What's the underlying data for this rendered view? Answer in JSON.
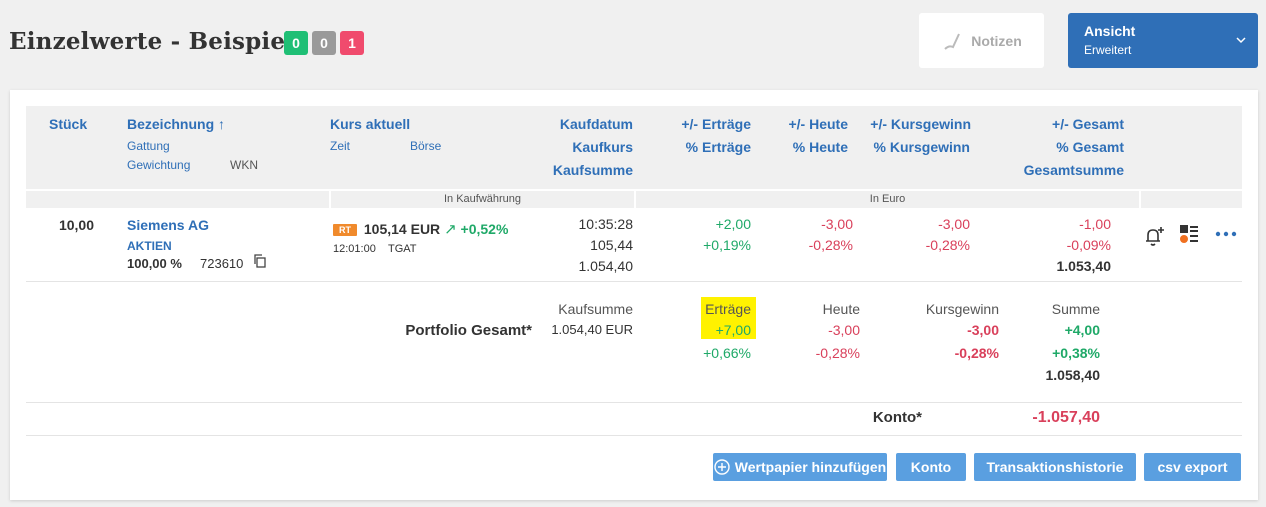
{
  "header": {
    "title": "Einzelwerte - Beispiel",
    "badges": [
      "0",
      "0",
      "1"
    ],
    "notes_label": "Notizen",
    "view_label": "Ansicht",
    "view_value": "Erweitert"
  },
  "table": {
    "col_stueck": "Stück",
    "col_bezeichnung": "Bezeichnung ↑",
    "sub_gattung": "Gattung",
    "sub_gewichtung": "Gewichtung",
    "sub_wkn": "WKN",
    "col_kurs": "Kurs aktuell",
    "sub_zeit": "Zeit",
    "sub_boerse": "Börse",
    "col_kaufdatum": "Kaufdatum",
    "col_kaufkurs": "Kaufkurs",
    "col_kaufsumme": "Kaufsumme",
    "col_ertraege": "+/- Erträge",
    "col_pct_ertraege": "% Erträge",
    "col_heute": "+/- Heute",
    "col_pct_heute": "% Heute",
    "col_kursgewinn": "+/- Kursgewinn",
    "col_pct_kursgewinn": "% Kursgewinn",
    "col_gesamt": "+/- Gesamt",
    "col_pct_gesamt": "% Gesamt",
    "col_gesamtsumme": "Gesamtsumme",
    "band_kauf": "In Kaufwährung",
    "band_euro": "In Euro"
  },
  "row": {
    "stueck": "10,00",
    "name": "Siemens AG",
    "gattung": "AKTIEN",
    "gewichtung": "100,00 %",
    "wkn": "723610",
    "rt": "RT",
    "kurs": "105,14 EUR",
    "kurs_change": "+0,52%",
    "zeit": "12:01:00",
    "boerse": "TGAT",
    "kaufdatum": "10:35:28",
    "kaufkurs": "105,44",
    "kaufsumme": "1.054,40",
    "ertraege": "+2,00",
    "pct_ertraege": "+0,19%",
    "heute": "-3,00",
    "pct_heute": "-0,28%",
    "kursgewinn": "-3,00",
    "pct_kursgewinn": "-0,28%",
    "gesamt": "-1,00",
    "pct_gesamt": "-0,09%",
    "gesamtsumme": "1.053,40"
  },
  "portfolio": {
    "label": "Portfolio Gesamt*",
    "kaufsumme_label": "Kaufsumme",
    "kaufsumme": "1.054,40 EUR",
    "ertraege_label": "Erträge",
    "ertraege": "+7,00",
    "pct_ertraege": "+0,66%",
    "heute_label": "Heute",
    "heute": "-3,00",
    "pct_heute": "-0,28%",
    "kursgewinn_label": "Kursgewinn",
    "kursgewinn": "-3,00",
    "pct_kursgewinn": "-0,28%",
    "summe_label": "Summe",
    "summe": "+4,00",
    "pct_summe": "+0,38%",
    "total": "1.058,40"
  },
  "konto": {
    "label": "Konto*",
    "value": "-1.057,40"
  },
  "buttons": {
    "add": "Wertpapier hinzufügen",
    "konto": "Konto",
    "history": "Transaktionshistorie",
    "csv": "csv export"
  },
  "colors": {
    "accent": "#2f6fb7",
    "positive": "#1fa968",
    "negative": "#d9405b",
    "highlight": "#fff200"
  }
}
